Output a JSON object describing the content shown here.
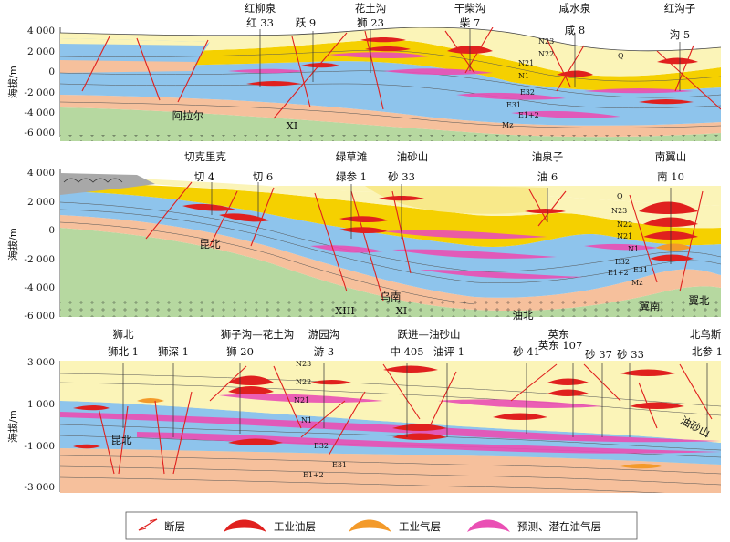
{
  "colors": {
    "yellow": "#f5d000",
    "paleYellow": "#fbf4b8",
    "blue": "#8ec4ec",
    "salmon": "#f6c09c",
    "green": "#b6d8a0",
    "gray": "#a8a8a8",
    "red": "#e0201e",
    "orange": "#f39a2a",
    "magenta": "#ea4fb4"
  },
  "y_axis_label": "海拔/m",
  "sections": [
    {
      "id": "top",
      "ticks": [
        "4 000",
        "2 000",
        "0",
        "-2 000",
        "-4 000",
        "-6 000"
      ],
      "labels": [
        {
          "text": "红柳泉"
        },
        {
          "text": "红 33"
        },
        {
          "text": "跃 9"
        },
        {
          "text": "花土沟"
        },
        {
          "text": "狮 23"
        },
        {
          "text": "干柴沟"
        },
        {
          "text": "柴 7"
        },
        {
          "text": "咸水泉"
        },
        {
          "text": "咸 8"
        },
        {
          "text": "红沟子"
        },
        {
          "text": "沟 5"
        },
        {
          "text": "阿拉尔"
        },
        {
          "text": "XI"
        }
      ],
      "formations": [
        "N23",
        "N22",
        "N21",
        "N1",
        "E32",
        "E31",
        "E1+2",
        "Mz",
        "Q"
      ]
    },
    {
      "id": "middle",
      "ticks": [
        "4 000",
        "2 000",
        "0",
        "-2 000",
        "-4 000",
        "-6 000"
      ],
      "labels": [
        {
          "text": "切克里克"
        },
        {
          "text": "切 4"
        },
        {
          "text": "切 6"
        },
        {
          "text": "绿草滩"
        },
        {
          "text": "绿参 1"
        },
        {
          "text": "油砂山"
        },
        {
          "text": "砂 33"
        },
        {
          "text": "油泉子"
        },
        {
          "text": "油 6"
        },
        {
          "text": "南翼山"
        },
        {
          "text": "南 10"
        },
        {
          "text": "昆北"
        },
        {
          "text": "XIII"
        },
        {
          "text": "乌南"
        },
        {
          "text": "XI"
        },
        {
          "text": "油北"
        },
        {
          "text": "翼南"
        },
        {
          "text": "翼北"
        }
      ],
      "formations": [
        "Q",
        "N23",
        "N22",
        "N21",
        "N1",
        "E32",
        "E31",
        "E1+2",
        "Mz"
      ]
    },
    {
      "id": "bottom",
      "ticks": [
        "3 000",
        "1 000",
        "-1 000",
        "-3 000"
      ],
      "labels": [
        {
          "text": "狮北"
        },
        {
          "text": "狮北 1"
        },
        {
          "text": "狮深 1"
        },
        {
          "text": "狮子沟—花土沟"
        },
        {
          "text": "狮 20"
        },
        {
          "text": "游园沟"
        },
        {
          "text": "游 3"
        },
        {
          "text": "跃进—油砂山"
        },
        {
          "text": "中 405"
        },
        {
          "text": "油评 1"
        },
        {
          "text": "砂 41"
        },
        {
          "text": "英东"
        },
        {
          "text": "英东 107"
        },
        {
          "text": "砂 37"
        },
        {
          "text": "砂 33"
        },
        {
          "text": "北乌斯"
        },
        {
          "text": "北参 1"
        },
        {
          "text": "昆北"
        },
        {
          "text": "油砂山"
        }
      ],
      "formations": [
        "N23",
        "N22",
        "N21",
        "N1",
        "E32",
        "E31",
        "E1+2"
      ]
    }
  ],
  "legend": [
    {
      "label": "断层",
      "icon": "fault-icon"
    },
    {
      "label": "工业油层",
      "icon": "oil-layer-icon"
    },
    {
      "label": "工业气层",
      "icon": "gas-layer-icon"
    },
    {
      "label": "预测、潜在油气层",
      "icon": "potential-layer-icon"
    }
  ]
}
